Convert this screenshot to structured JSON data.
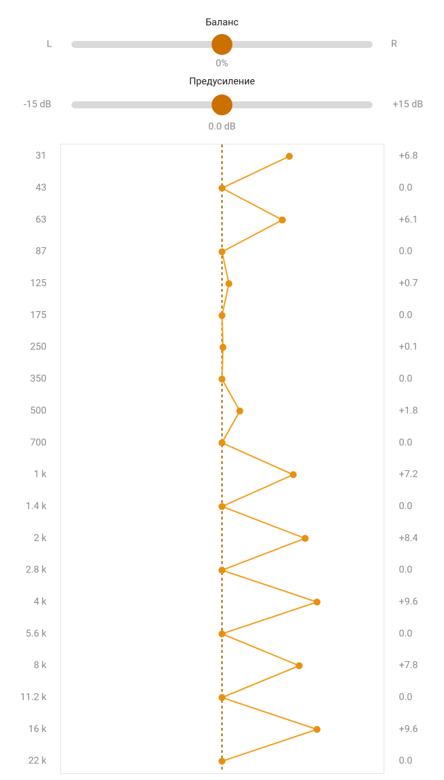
{
  "balance": {
    "title": "Баланс",
    "left": "L",
    "right": "R",
    "value_label": "0%"
  },
  "preamp": {
    "title": "Предусиление",
    "min": {
      "value": -15,
      "label": "-15 dB"
    },
    "max": {
      "value": 15,
      "label": "+15 dB"
    },
    "value": 0,
    "value_label": "0.0 dB"
  },
  "bands": [
    {
      "freq": "31",
      "value": 6.8,
      "label": "+6.8"
    },
    {
      "freq": "43",
      "value": 0,
      "label": "0.0"
    },
    {
      "freq": "63",
      "value": 6.1,
      "label": "+6.1"
    },
    {
      "freq": "87",
      "value": 0,
      "label": "0.0"
    },
    {
      "freq": "125",
      "value": 0.7,
      "label": "+0.7"
    },
    {
      "freq": "175",
      "value": 0,
      "label": "0.0"
    },
    {
      "freq": "250",
      "value": 0.1,
      "label": "+0.1"
    },
    {
      "freq": "350",
      "value": 0,
      "label": "0.0"
    },
    {
      "freq": "500",
      "value": 1.8,
      "label": "+1.8"
    },
    {
      "freq": "700",
      "value": 0,
      "label": "0.0"
    },
    {
      "freq": "1 k",
      "value": 7.2,
      "label": "+7.2"
    },
    {
      "freq": "1.4 k",
      "value": 0,
      "label": "0.0"
    },
    {
      "freq": "2 k",
      "value": 8.4,
      "label": "+8.4"
    },
    {
      "freq": "2.8 k",
      "value": 0,
      "label": "0.0"
    },
    {
      "freq": "4 k",
      "value": 9.6,
      "label": "+9.6"
    },
    {
      "freq": "5.6 k",
      "value": 0,
      "label": "0.0"
    },
    {
      "freq": "8 k",
      "value": 7.8,
      "label": "+7.8"
    },
    {
      "freq": "11.2 k",
      "value": 0,
      "label": "0.0"
    },
    {
      "freq": "16 k",
      "value": 9.6,
      "label": "+9.6"
    },
    {
      "freq": "22 k",
      "value": 0,
      "label": "0.0"
    }
  ]
}
